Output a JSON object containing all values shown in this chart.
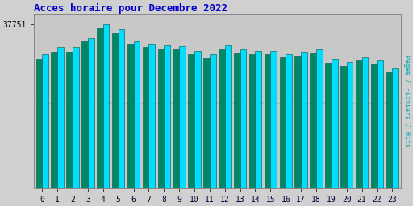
{
  "title": "Acces horaire pour Decembre 2022",
  "title_color": "#0000cc",
  "ylabel_right": "Pages / Fichiers / Hits",
  "ylabel_right_color": "#00aaaa",
  "x_labels": [
    "0",
    "1",
    "2",
    "3",
    "4",
    "5",
    "6",
    "7",
    "8",
    "9",
    "10",
    "11",
    "12",
    "13",
    "14",
    "15",
    "16",
    "17",
    "18",
    "19",
    "20",
    "21",
    "22",
    "23"
  ],
  "ytick_label": "37751",
  "background_color": "#d0d0d0",
  "plot_bg_color": "#c8c8c8",
  "bar_color_cyan": "#00ddff",
  "bar_color_teal": "#008866",
  "bar_edge_color": "#005544",
  "hits": [
    0.82,
    0.855,
    0.858,
    0.918,
    1.0,
    0.968,
    0.898,
    0.878,
    0.872,
    0.868,
    0.84,
    0.818,
    0.87,
    0.848,
    0.84,
    0.84,
    0.82,
    0.828,
    0.848,
    0.788,
    0.768,
    0.8,
    0.778,
    0.728
  ],
  "pages": [
    0.79,
    0.83,
    0.835,
    0.895,
    0.975,
    0.945,
    0.875,
    0.855,
    0.848,
    0.845,
    0.818,
    0.795,
    0.848,
    0.825,
    0.818,
    0.818,
    0.798,
    0.805,
    0.825,
    0.765,
    0.745,
    0.778,
    0.755,
    0.705
  ],
  "ymax": 1.06,
  "title_fontsize": 9,
  "tick_fontsize": 7
}
